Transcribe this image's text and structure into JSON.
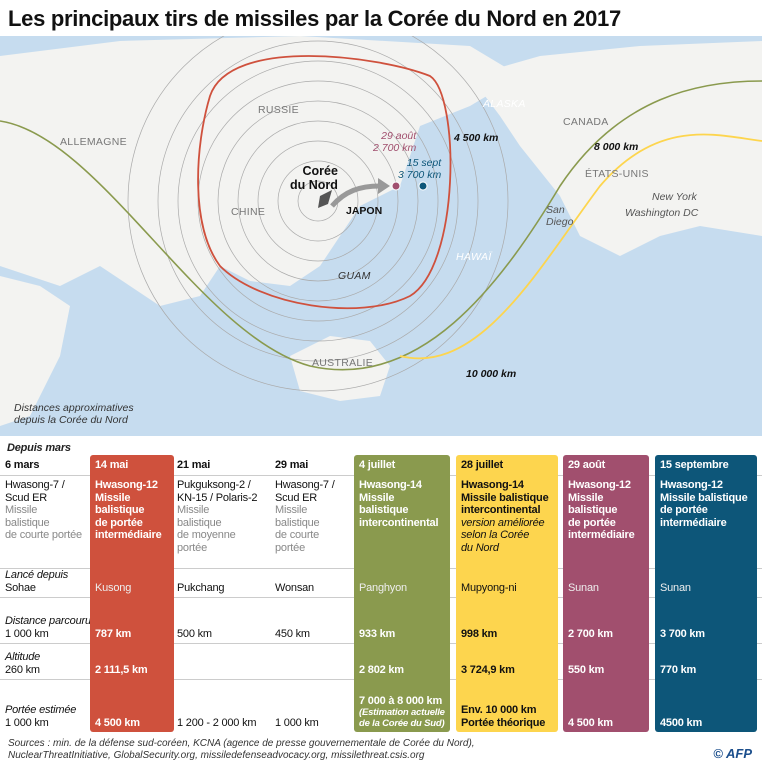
{
  "title": "Les principaux tirs de missiles par la Corée du Nord en 2017",
  "map": {
    "countries": {
      "russie": "RUSSIE",
      "chine": "CHINE",
      "japon": "JAPON",
      "allemagne": "ALLEMAGNE",
      "canada": "CANADA",
      "etats_unis": "ÉTATS-UNIS",
      "australie": "AUSTRALIE",
      "alaska": "ALASKA",
      "hawai": "HAWAÏ",
      "guam": "GUAM"
    },
    "origin": "Corée\ndu Nord",
    "cities": {
      "new_york": "New York",
      "washington": "Washington DC",
      "san_diego": "San\nDiego"
    },
    "impacts": [
      {
        "label": "29 août\n2 700 km",
        "color": "#a14f6e"
      },
      {
        "label": "15 sept\n3 700 km",
        "color": "#0d5679"
      }
    ],
    "ranges": [
      {
        "label": "4 500 km",
        "color": "#cf513d"
      },
      {
        "label": "8 000 km",
        "color": "#fdd54e"
      },
      {
        "label": "10 000 km",
        "color": "#8a9a4e"
      }
    ],
    "note": "Distances approximatives\ndepuis la Corée du Nord"
  },
  "table": {
    "since": "Depuis mars",
    "row_labels": [
      "",
      "",
      "Lancé depuis",
      "Distance\nparcourue",
      "Altitude",
      "Portée estimée"
    ],
    "columns": [
      {
        "date": "6 mars",
        "name": "Hwasong-7 /\nScud ER",
        "type": "Missile\nbalistique\nde courte portée",
        "note": "",
        "site": "Sohae",
        "distance": "1 000 km",
        "altitude": "260 km",
        "range": "1 000 km",
        "range_note": "",
        "color": ""
      },
      {
        "date": "14 mai",
        "name": "Hwasong-12\nMissile\nbalistique\nde portée\nintermédiaire",
        "type": "",
        "note": "",
        "site": "Kusong",
        "distance": "787 km",
        "altitude": "2 111,5 km",
        "range": "4 500 km",
        "range_note": "",
        "color": "#cf513d"
      },
      {
        "date": "21 mai",
        "name": "Pukguksong-2 /\nKN-15 / Polaris-2",
        "type": "Missile\nbalistique\nde moyenne portée",
        "note": "",
        "site": "Pukchang",
        "distance": "500 km",
        "altitude": "",
        "range": "1 200 - 2 000 km",
        "range_note": "",
        "color": ""
      },
      {
        "date": "29 mai",
        "name": "Hwasong-7 /\nScud ER",
        "type": "Missile\nbalistique\nde courte portée",
        "note": "",
        "site": "Wonsan",
        "distance": "450 km",
        "altitude": "",
        "range": "1 000 km",
        "range_note": "",
        "color": ""
      },
      {
        "date": "4 juillet",
        "name": "Hwasong-14\nMissile\nbalistique\nintercontinental",
        "type": "",
        "note": "",
        "site": "Panghyon",
        "distance": "933 km",
        "altitude": "2 802 km",
        "range": "7 000 à 8 000 km",
        "range_note": "(Estimation actuelle\nde la Corée du Sud)",
        "color": "#8a9a4e"
      },
      {
        "date": "28 juillet",
        "name": "Hwasong-14\nMissile balistique\nintercontinental",
        "type": "",
        "note": "version améliorée\nselon la Corée\ndu Nord",
        "site": "Mupyong-ni",
        "distance": "998 km",
        "altitude": "3 724,9 km",
        "range": "Env. 10 000 km\nPortée théorique",
        "range_note": "",
        "color": "#fdd54e"
      },
      {
        "date": "29 août",
        "name": "Hwasong-12\nMissile\nbalistique\nde portée\nintermédiaire",
        "type": "",
        "note": "",
        "site": "Sunan",
        "distance": "2 700 km",
        "altitude": "550 km",
        "range": "4 500 km",
        "range_note": "",
        "color": "#a14f6e"
      },
      {
        "date": "15 septembre",
        "name": "Hwasong-12\nMissile balistique\nde portée\nintermédiaire",
        "type": "",
        "note": "",
        "site": "Sunan",
        "distance": "3 700 km",
        "altitude": "770 km",
        "range": "4500 km",
        "range_note": "",
        "color": "#0d5679"
      }
    ]
  },
  "sources": "Sources : min. de la défense sud-coréen, KCNA (agence de presse gouvernementale de Corée du Nord),\nNuclearThreatInitiative, GlobalSecurity.org, missiledefenseadvocacy.org, missilethreat.csis.org",
  "credit": "© AFP"
}
